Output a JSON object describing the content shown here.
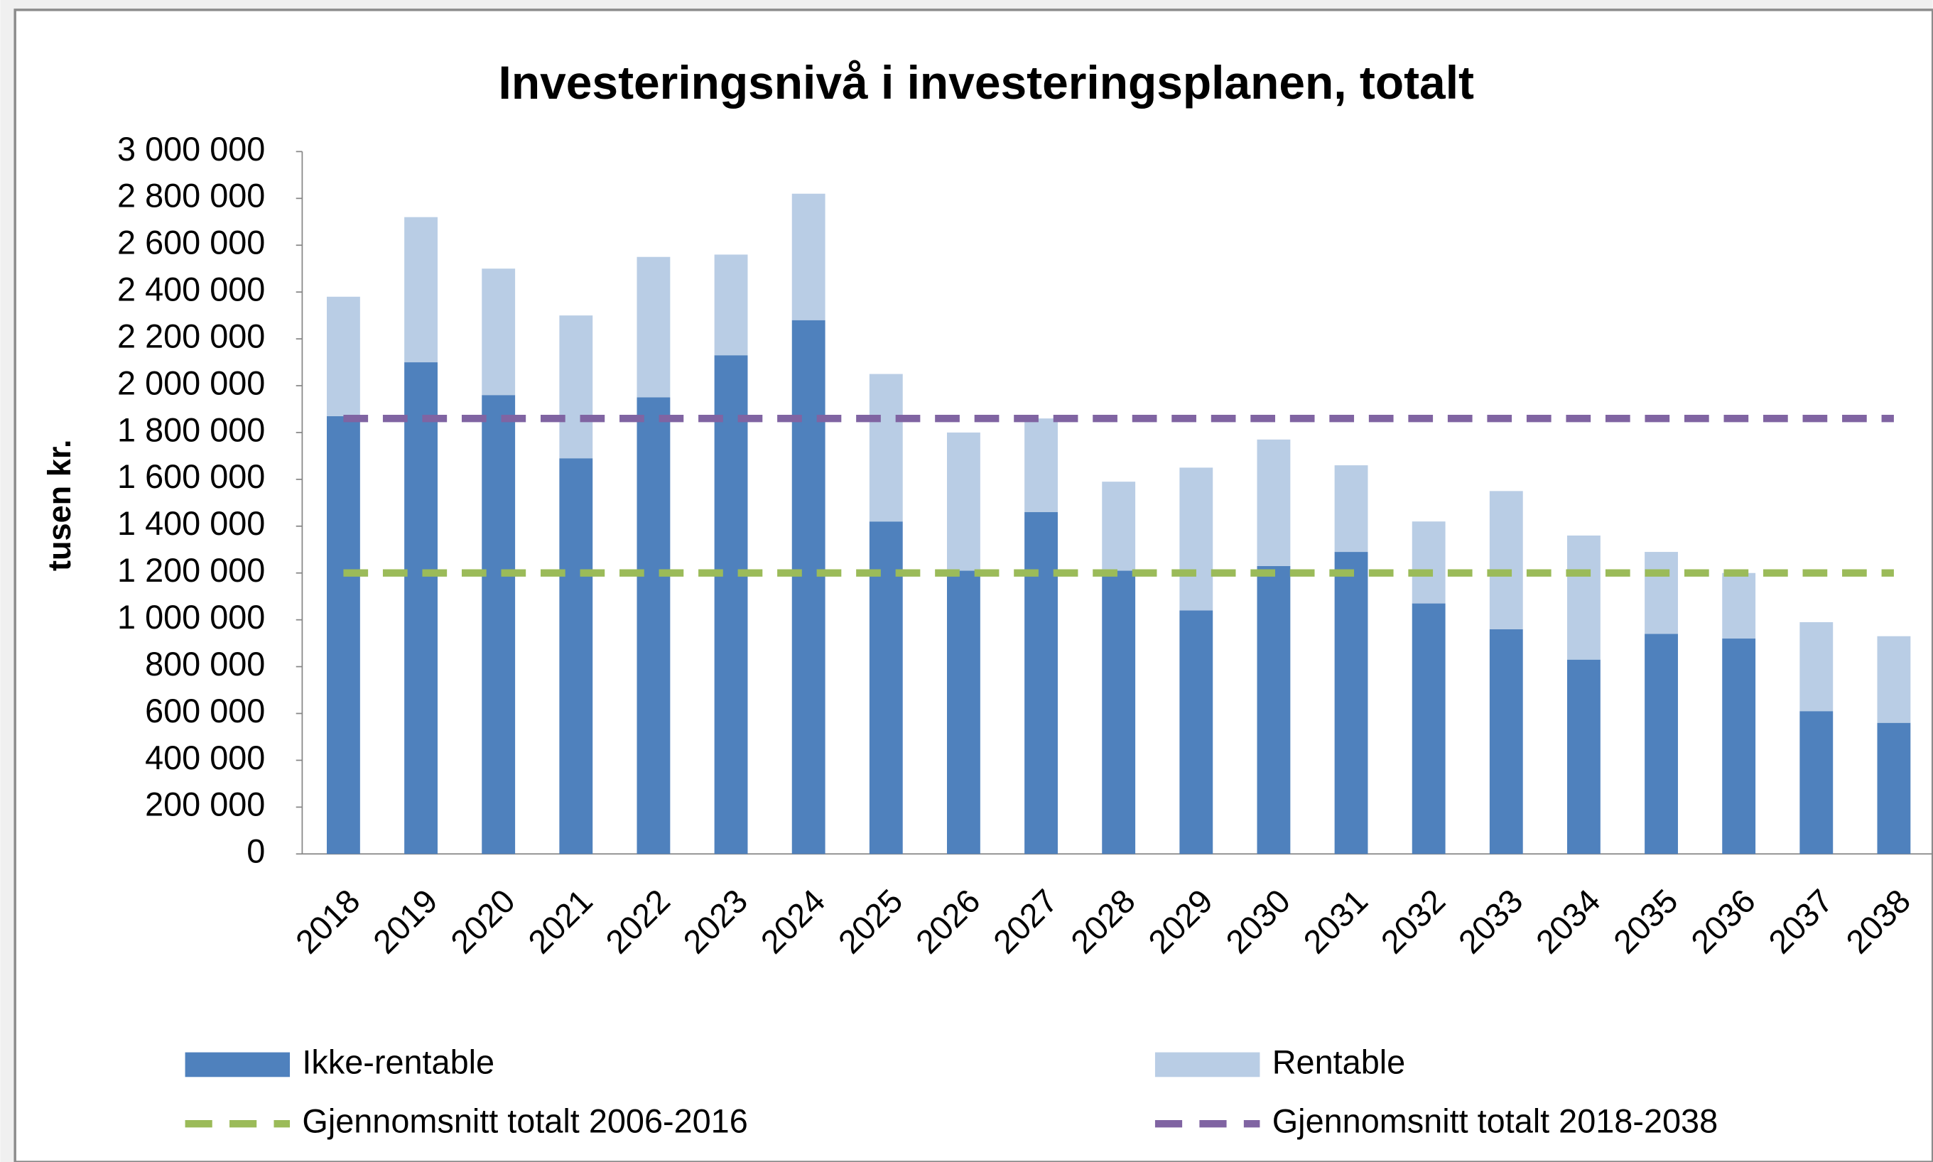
{
  "chart_data": {
    "type": "bar",
    "stacked": true,
    "title": "Investeringsnivå i investeringsplanen, totalt",
    "y_label": "tusen kr.",
    "categories": [
      "2018",
      "2019",
      "2020",
      "2021",
      "2022",
      "2023",
      "2024",
      "2025",
      "2026",
      "2027",
      "2028",
      "2029",
      "2030",
      "2031",
      "2032",
      "2033",
      "2034",
      "2035",
      "2036",
      "2037",
      "2038"
    ],
    "series": [
      {
        "name": "Ikke-rentable",
        "type": "bar",
        "color": "#4f81bd",
        "values": [
          1870000,
          2100000,
          1960000,
          1690000,
          1950000,
          2130000,
          2280000,
          1420000,
          1210000,
          1460000,
          1210000,
          1040000,
          1230000,
          1290000,
          1070000,
          960000,
          830000,
          940000,
          920000,
          610000,
          560000
        ]
      },
      {
        "name": "Rentable",
        "type": "bar",
        "color": "#b9cde5",
        "values": [
          510000,
          620000,
          540000,
          610000,
          600000,
          430000,
          540000,
          630000,
          590000,
          400000,
          380000,
          610000,
          540000,
          370000,
          350000,
          590000,
          530000,
          350000,
          280000,
          380000,
          370000
        ]
      },
      {
        "name": "Gjennomsnitt totalt 2006-2016",
        "type": "line",
        "dashed": true,
        "color": "#9bbb59",
        "values": [
          1200000,
          1200000,
          1200000,
          1200000,
          1200000,
          1200000,
          1200000,
          1200000,
          1200000,
          1200000,
          1200000,
          1200000,
          1200000,
          1200000,
          1200000,
          1200000,
          1200000,
          1200000,
          1200000,
          1200000,
          1200000
        ]
      },
      {
        "name": "Gjennomsnitt totalt 2018-2038",
        "type": "line",
        "dashed": true,
        "color": "#8064a2",
        "values": [
          1860000,
          1860000,
          1860000,
          1860000,
          1860000,
          1860000,
          1860000,
          1860000,
          1860000,
          1860000,
          1860000,
          1860000,
          1860000,
          1860000,
          1860000,
          1860000,
          1860000,
          1860000,
          1860000,
          1860000,
          1860000
        ]
      }
    ],
    "ylim": [
      0,
      3000000
    ],
    "yticks": [
      0,
      {
        "value": 200000,
        "label": "200 000"
      },
      {
        "value": 400000,
        "label": "400 000"
      },
      {
        "value": 600000,
        "label": "600 000"
      },
      {
        "value": 800000,
        "label": "800 000"
      },
      {
        "value": 1000000,
        "label": "1 000 000"
      },
      {
        "value": 1200000,
        "label": "1 200 000"
      },
      {
        "value": 1400000,
        "label": "1 400 000"
      },
      {
        "value": 1600000,
        "label": "1 600 000"
      },
      {
        "value": 1800000,
        "label": "1 800 000"
      },
      {
        "value": 2000000,
        "label": "2 000 000"
      },
      {
        "value": 2200000,
        "label": "2 200 000"
      },
      {
        "value": 2400000,
        "label": "2 400 000"
      },
      {
        "value": 2600000,
        "label": "2 600 000"
      },
      {
        "value": 2800000,
        "label": "2 800 000"
      },
      {
        "value": 3000000,
        "label": "3 000 000"
      }
    ],
    "grid": false,
    "legend": "bottom"
  }
}
